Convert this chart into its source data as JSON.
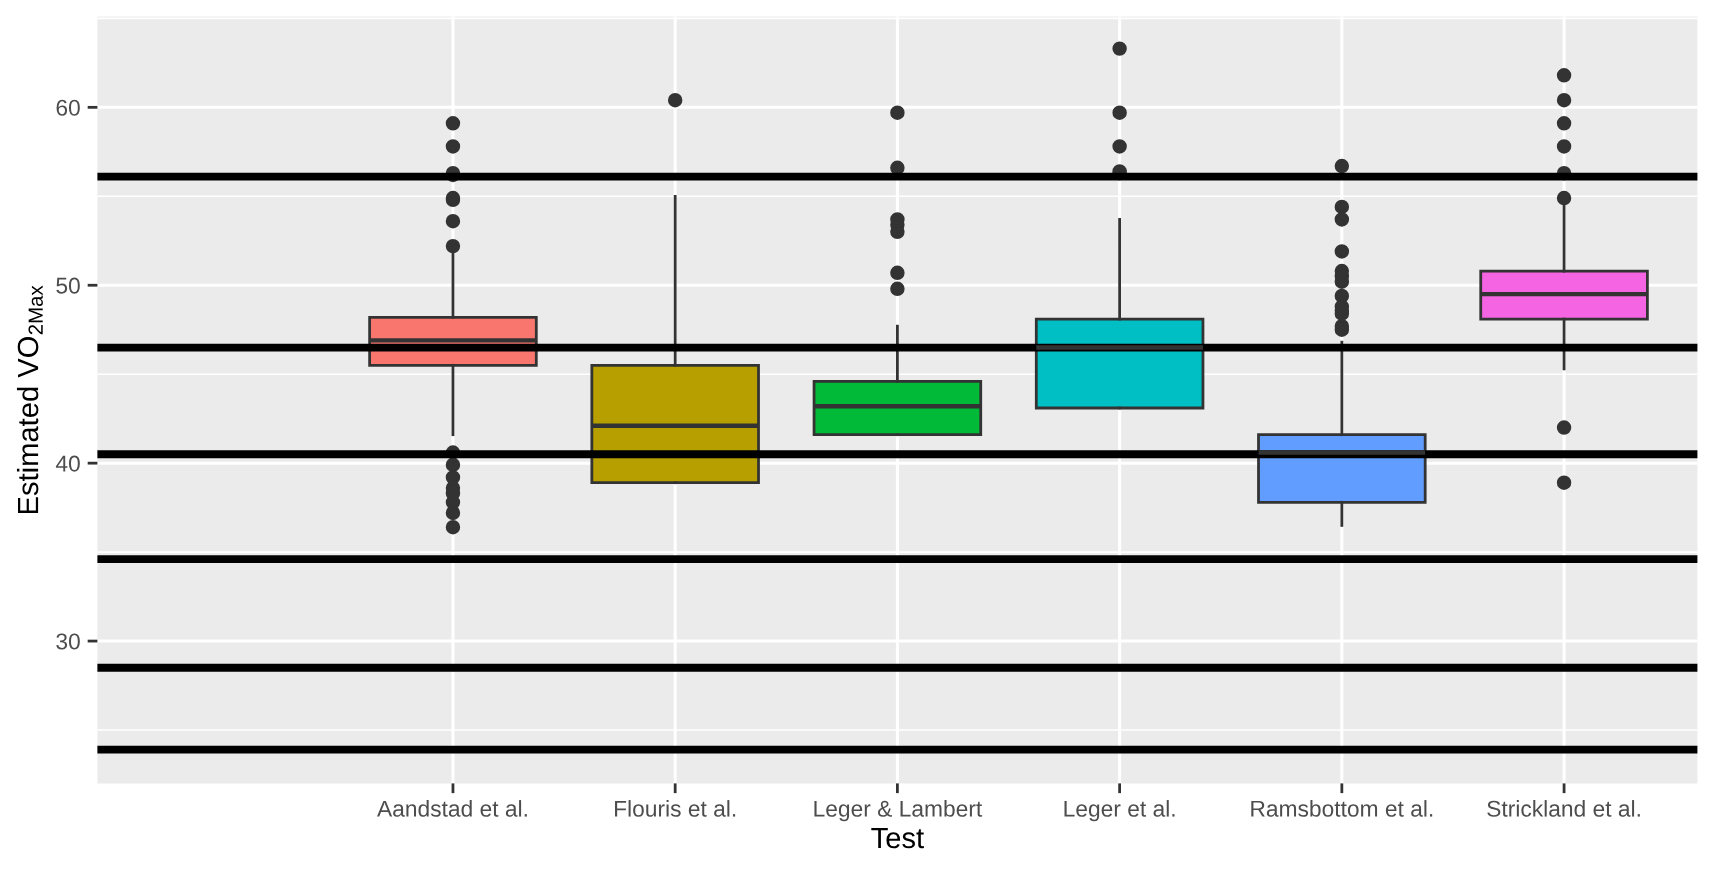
{
  "chart_data": {
    "type": "box",
    "xlabel": "Test",
    "ylabel": "Estimated VO$_{2Max}$",
    "categories": [
      null,
      "Aandstad et al.",
      "Flouris et al.",
      "Leger & Lambert",
      "Leger et al.",
      "Ramsbottom et al.",
      "Strickland et al."
    ],
    "colors": [
      null,
      "#F8766D",
      "#B79F00",
      "#00BA38",
      "#00BFC4",
      "#619CFF",
      "#F564E3"
    ],
    "boxes": [
      null,
      {
        "low": 41.6,
        "q1": 45.5,
        "median": 46.9,
        "q3": 48.2,
        "high": 51.9,
        "outliers": [
          59.1,
          57.8,
          56.3,
          56.2,
          54.9,
          54.8,
          53.6,
          52.2,
          40.6,
          39.9,
          39.2,
          38.6,
          38.3,
          37.8,
          37.2,
          36.4
        ]
      },
      {
        "low": 38.9,
        "q1": 38.9,
        "median": 42.1,
        "q3": 45.5,
        "high": 55.0,
        "outliers": [
          60.4
        ]
      },
      {
        "low": 41.6,
        "q1": 41.6,
        "median": 43.2,
        "q3": 44.6,
        "high": 47.7,
        "outliers": [
          59.7,
          56.6,
          53.7,
          53.4,
          53.0,
          50.7,
          49.8
        ]
      },
      {
        "low": 43.1,
        "q1": 43.1,
        "median": 46.5,
        "q3": 48.1,
        "high": 53.7,
        "outliers": [
          63.3,
          59.7,
          57.8,
          56.4,
          56.3
        ]
      },
      {
        "low": 36.5,
        "q1": 37.8,
        "median": 40.6,
        "q3": 41.6,
        "high": 46.8,
        "outliers": [
          56.7,
          54.4,
          53.7,
          51.9,
          50.8,
          50.5,
          50.2,
          49.4,
          48.8,
          48.6,
          48.4,
          47.7,
          47.5
        ]
      },
      {
        "low": 45.3,
        "q1": 48.1,
        "median": 49.5,
        "q3": 50.8,
        "high": 54.8,
        "outliers": [
          61.8,
          60.4,
          59.1,
          57.8,
          56.3,
          54.9,
          42.0,
          38.9
        ]
      }
    ],
    "ylim": [
      22,
      65.1
    ],
    "yticks": [
      30,
      40,
      50,
      60
    ],
    "grid": true,
    "ref_lines": [
      {
        "axis": "y",
        "value": 56.1,
        "color": "#000000"
      },
      {
        "axis": "y",
        "value": 46.5,
        "color": "#000000"
      },
      {
        "axis": "y",
        "value": 40.5,
        "color": "#000000"
      },
      {
        "axis": "y",
        "value": 34.6,
        "color": "#000000"
      },
      {
        "axis": "y",
        "value": 28.5,
        "color": "#000000"
      },
      {
        "axis": "y",
        "value": 23.9,
        "color": "#000000"
      }
    ]
  }
}
